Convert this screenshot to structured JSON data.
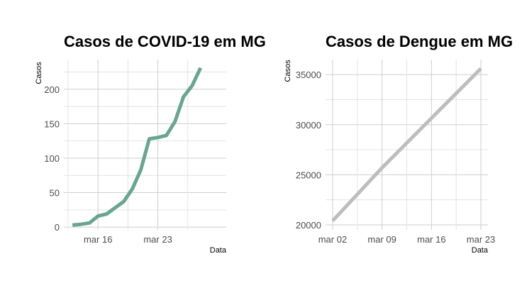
{
  "chart_data": [
    {
      "type": "line",
      "title": "Casos de COVID-19 em MG",
      "xlabel": "Data",
      "ylabel": "Casos",
      "color": "#6aa58f",
      "x_ticks": [
        {
          "label": "mar 16",
          "date": "2020-03-16"
        },
        {
          "label": "mar 23",
          "date": "2020-03-23"
        }
      ],
      "y_ticks": [
        0,
        50,
        100,
        150,
        200
      ],
      "xlim": [
        "2020-03-12",
        "2020-03-31"
      ],
      "ylim": [
        -4,
        243
      ],
      "grid": true,
      "series": [
        {
          "x": [
            "2020-03-13",
            "2020-03-14",
            "2020-03-15",
            "2020-03-16",
            "2020-03-17",
            "2020-03-18",
            "2020-03-19",
            "2020-03-20",
            "2020-03-21",
            "2020-03-22",
            "2020-03-23",
            "2020-03-24",
            "2020-03-25",
            "2020-03-26",
            "2020-03-27",
            "2020-03-28",
            "2020-03-29",
            "2020-03-30"
          ],
          "y": [
            3,
            4,
            6,
            16,
            19,
            28,
            37,
            55,
            83,
            128,
            130,
            133,
            153,
            189,
            205,
            231,
            null,
            null
          ]
        }
      ]
    },
    {
      "type": "line",
      "title": "Casos de Dengue em MG",
      "xlabel": "Data",
      "ylabel": "Casos",
      "color": "#bdbdbd",
      "x_ticks": [
        {
          "label": "mar 02",
          "date": "2020-03-02"
        },
        {
          "label": "mar 09",
          "date": "2020-03-09"
        },
        {
          "label": "mar 16",
          "date": "2020-03-16"
        },
        {
          "label": "mar 23",
          "date": "2020-03-23"
        }
      ],
      "y_ticks": [
        20000,
        25000,
        30000,
        35000
      ],
      "xlim": [
        "2020-03-01",
        "2020-03-24"
      ],
      "ylim": [
        19500,
        36500
      ],
      "grid": true,
      "series": [
        {
          "x": [
            "2020-03-02",
            "2020-03-09",
            "2020-03-23"
          ],
          "y": [
            20400,
            25700,
            35600
          ]
        }
      ]
    }
  ]
}
